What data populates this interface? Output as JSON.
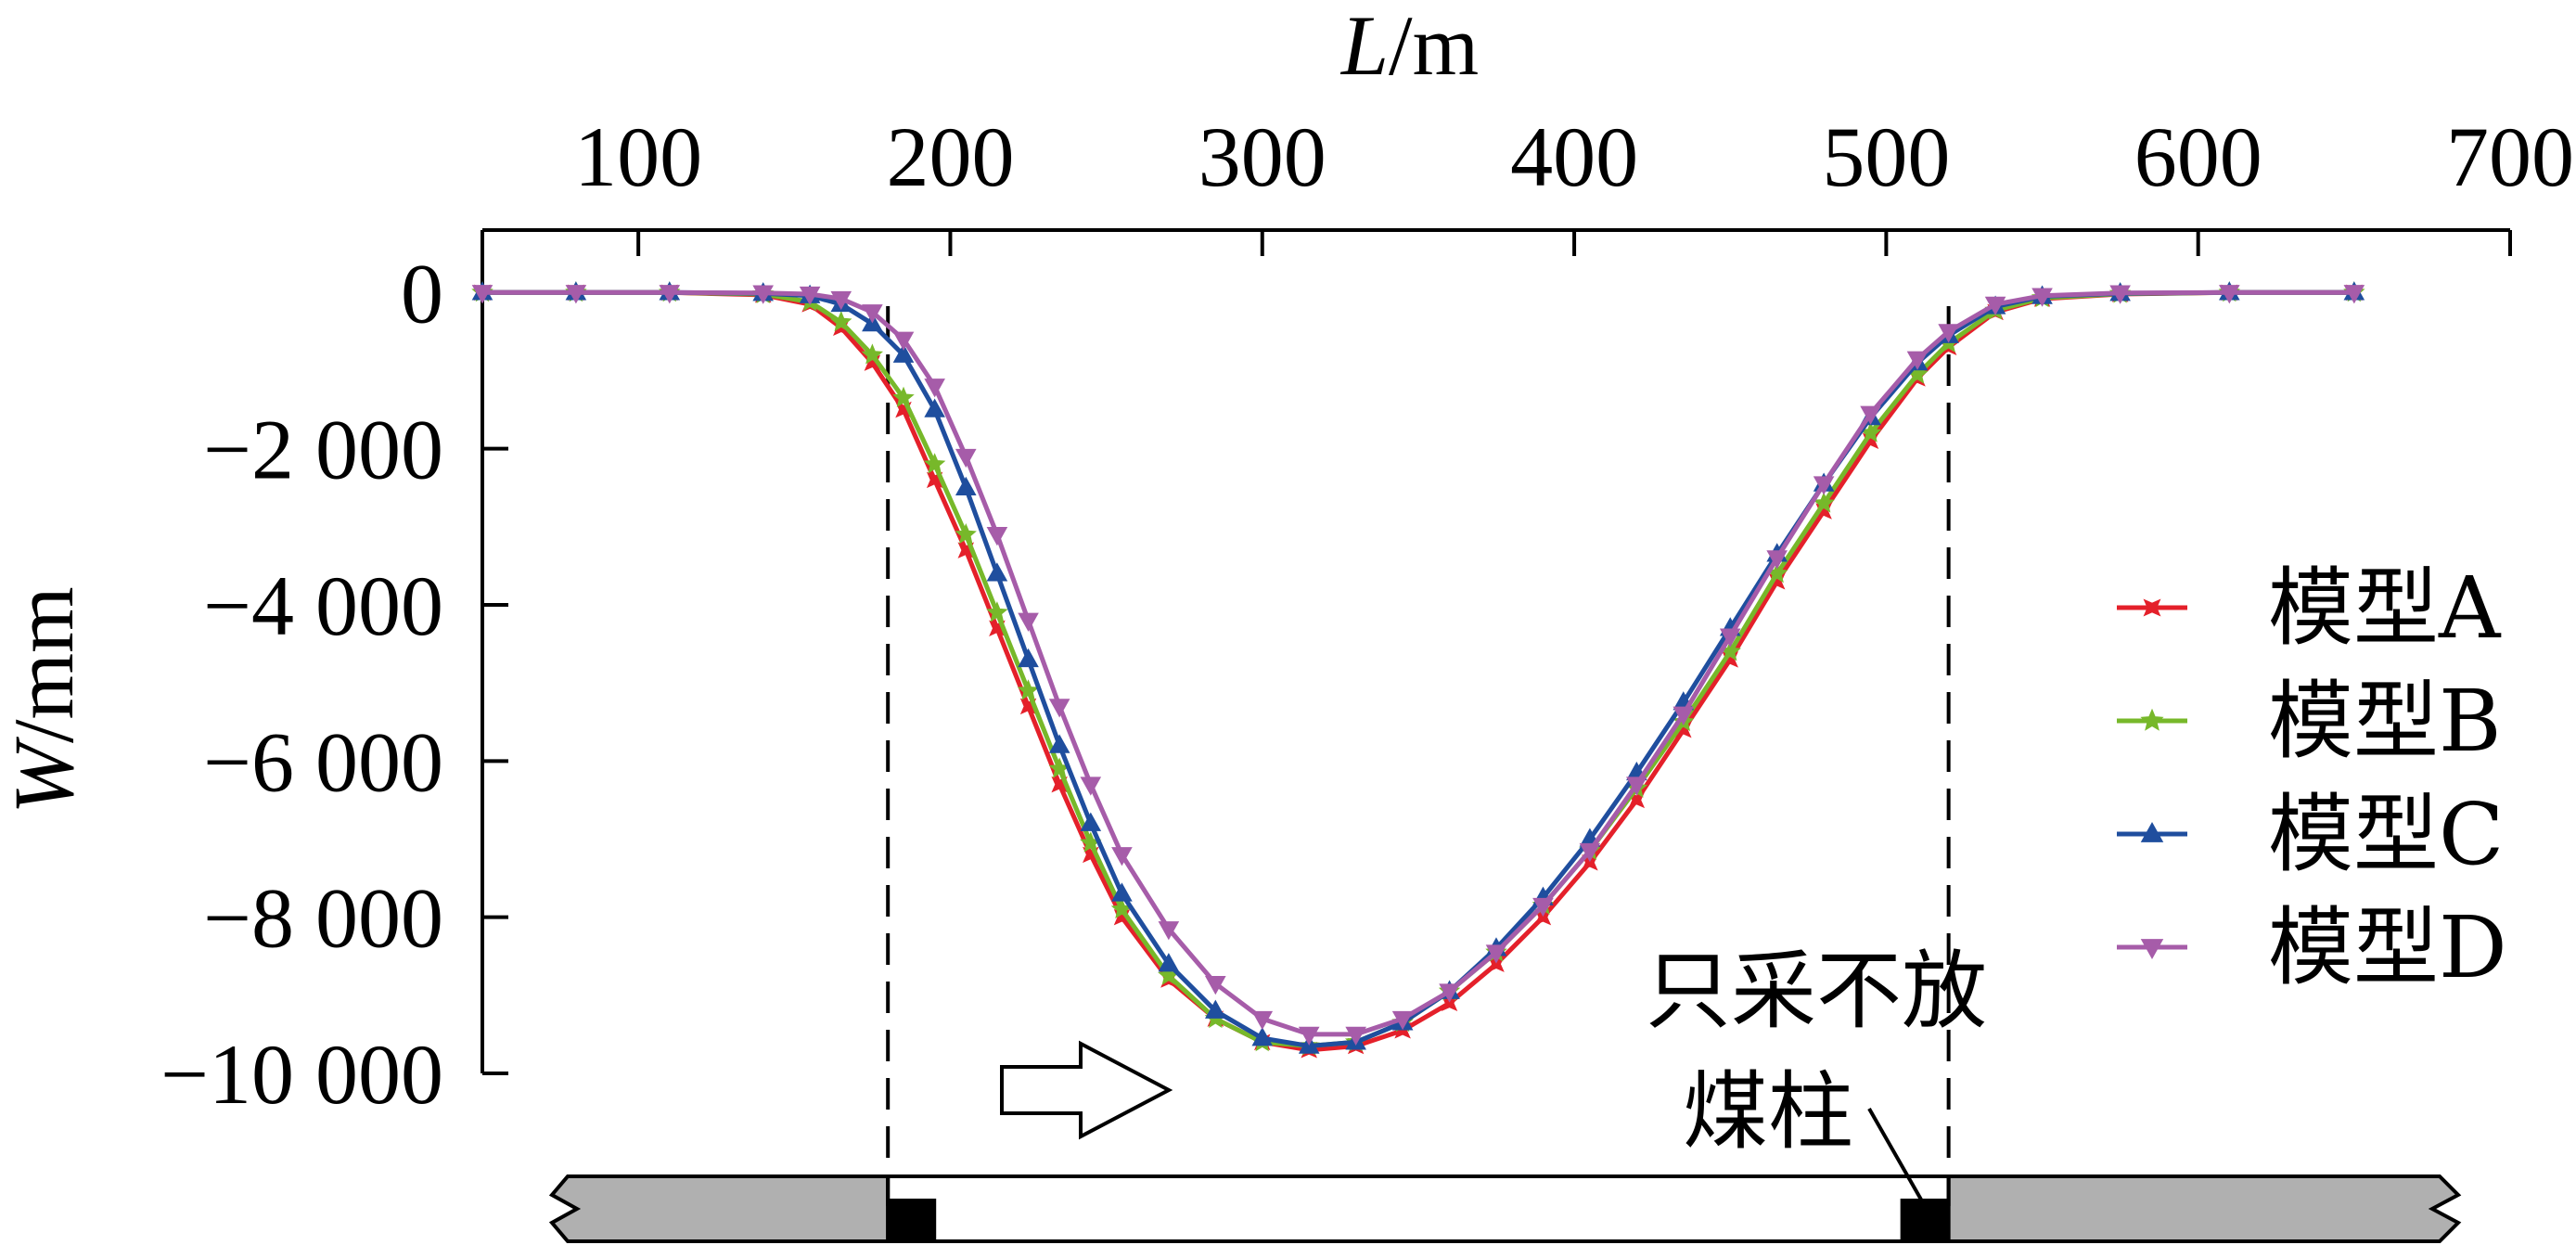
{
  "chart_data": {
    "type": "line",
    "xlabel_var": "L",
    "xlabel_unit": "/m",
    "ylabel_var": "W",
    "ylabel_unit": "/mm",
    "xlim": [
      50,
      700
    ],
    "ylim": [
      -10000,
      800
    ],
    "x_ticks": [
      100,
      200,
      300,
      400,
      500,
      600,
      700
    ],
    "x_tick_labels": [
      "100",
      "200",
      "300",
      "400",
      "500",
      "600",
      "700"
    ],
    "y_ticks": [
      0,
      -2000,
      -4000,
      -6000,
      -8000,
      -10000
    ],
    "y_tick_labels": [
      "0",
      "−2 000",
      "−4 000",
      "−6 000",
      "−8 000",
      "−10 000"
    ],
    "legend_position": "right",
    "grid": false,
    "series": [
      {
        "name": "模型A",
        "color": "#e4202a",
        "marker": "star4",
        "points": [
          [
            50,
            0
          ],
          [
            80,
            0
          ],
          [
            110,
            0
          ],
          [
            140,
            -30
          ],
          [
            155,
            -150
          ],
          [
            165,
            -450
          ],
          [
            175,
            -900
          ],
          [
            185,
            -1500
          ],
          [
            195,
            -2400
          ],
          [
            205,
            -3300
          ],
          [
            215,
            -4300
          ],
          [
            225,
            -5300
          ],
          [
            235,
            -6300
          ],
          [
            245,
            -7200
          ],
          [
            255,
            -8000
          ],
          [
            270,
            -8800
          ],
          [
            285,
            -9300
          ],
          [
            300,
            -9600
          ],
          [
            315,
            -9700
          ],
          [
            330,
            -9650
          ],
          [
            345,
            -9450
          ],
          [
            360,
            -9100
          ],
          [
            375,
            -8600
          ],
          [
            390,
            -8000
          ],
          [
            405,
            -7300
          ],
          [
            420,
            -6500
          ],
          [
            435,
            -5600
          ],
          [
            450,
            -4700
          ],
          [
            465,
            -3700
          ],
          [
            480,
            -2800
          ],
          [
            495,
            -1900
          ],
          [
            510,
            -1100
          ],
          [
            520,
            -700
          ],
          [
            535,
            -250
          ],
          [
            550,
            -80
          ],
          [
            575,
            -20
          ],
          [
            610,
            0
          ],
          [
            650,
            0
          ]
        ]
      },
      {
        "name": "模型B",
        "color": "#77b82a",
        "marker": "star5",
        "points": [
          [
            50,
            0
          ],
          [
            80,
            0
          ],
          [
            110,
            0
          ],
          [
            140,
            -20
          ],
          [
            155,
            -120
          ],
          [
            165,
            -380
          ],
          [
            175,
            -800
          ],
          [
            185,
            -1350
          ],
          [
            195,
            -2200
          ],
          [
            205,
            -3100
          ],
          [
            215,
            -4100
          ],
          [
            225,
            -5100
          ],
          [
            235,
            -6100
          ],
          [
            245,
            -7050
          ],
          [
            255,
            -7900
          ],
          [
            270,
            -8750
          ],
          [
            285,
            -9300
          ],
          [
            300,
            -9600
          ],
          [
            315,
            -9650
          ],
          [
            330,
            -9600
          ],
          [
            345,
            -9350
          ],
          [
            360,
            -8950
          ],
          [
            375,
            -8450
          ],
          [
            390,
            -7850
          ],
          [
            405,
            -7150
          ],
          [
            420,
            -6350
          ],
          [
            435,
            -5500
          ],
          [
            450,
            -4600
          ],
          [
            465,
            -3600
          ],
          [
            480,
            -2700
          ],
          [
            495,
            -1800
          ],
          [
            510,
            -1050
          ],
          [
            520,
            -650
          ],
          [
            535,
            -230
          ],
          [
            550,
            -70
          ],
          [
            575,
            -15
          ],
          [
            610,
            0
          ],
          [
            650,
            0
          ]
        ]
      },
      {
        "name": "模型C",
        "color": "#1f4e9e",
        "marker": "triangle-up",
        "points": [
          [
            50,
            0
          ],
          [
            80,
            0
          ],
          [
            110,
            0
          ],
          [
            140,
            -10
          ],
          [
            155,
            -40
          ],
          [
            165,
            -150
          ],
          [
            175,
            -400
          ],
          [
            185,
            -800
          ],
          [
            195,
            -1500
          ],
          [
            205,
            -2500
          ],
          [
            215,
            -3600
          ],
          [
            225,
            -4700
          ],
          [
            235,
            -5800
          ],
          [
            245,
            -6800
          ],
          [
            255,
            -7700
          ],
          [
            270,
            -8600
          ],
          [
            285,
            -9200
          ],
          [
            300,
            -9550
          ],
          [
            315,
            -9650
          ],
          [
            330,
            -9600
          ],
          [
            345,
            -9350
          ],
          [
            360,
            -8950
          ],
          [
            375,
            -8400
          ],
          [
            390,
            -7750
          ],
          [
            405,
            -7000
          ],
          [
            420,
            -6150
          ],
          [
            435,
            -5250
          ],
          [
            450,
            -4300
          ],
          [
            465,
            -3350
          ],
          [
            480,
            -2450
          ],
          [
            495,
            -1600
          ],
          [
            510,
            -900
          ],
          [
            520,
            -550
          ],
          [
            535,
            -180
          ],
          [
            550,
            -50
          ],
          [
            575,
            -10
          ],
          [
            610,
            0
          ],
          [
            650,
            0
          ]
        ]
      },
      {
        "name": "模型D",
        "color": "#a65ca9",
        "marker": "triangle-down",
        "points": [
          [
            50,
            0
          ],
          [
            80,
            0
          ],
          [
            110,
            0
          ],
          [
            140,
            -5
          ],
          [
            155,
            -20
          ],
          [
            165,
            -80
          ],
          [
            175,
            -250
          ],
          [
            185,
            -600
          ],
          [
            195,
            -1200
          ],
          [
            205,
            -2100
          ],
          [
            215,
            -3100
          ],
          [
            225,
            -4200
          ],
          [
            235,
            -5300
          ],
          [
            245,
            -6300
          ],
          [
            255,
            -7200
          ],
          [
            270,
            -8150
          ],
          [
            285,
            -8850
          ],
          [
            300,
            -9300
          ],
          [
            315,
            -9500
          ],
          [
            330,
            -9500
          ],
          [
            345,
            -9300
          ],
          [
            360,
            -8950
          ],
          [
            375,
            -8450
          ],
          [
            390,
            -7850
          ],
          [
            405,
            -7150
          ],
          [
            420,
            -6300
          ],
          [
            435,
            -5400
          ],
          [
            450,
            -4400
          ],
          [
            465,
            -3400
          ],
          [
            480,
            -2450
          ],
          [
            495,
            -1550
          ],
          [
            510,
            -850
          ],
          [
            520,
            -500
          ],
          [
            535,
            -150
          ],
          [
            550,
            -40
          ],
          [
            575,
            -5
          ],
          [
            610,
            0
          ],
          [
            650,
            0
          ]
        ]
      }
    ],
    "vlines": [
      180,
      520
    ],
    "annotation_lines": [
      "只采不放",
      "煤柱"
    ]
  }
}
